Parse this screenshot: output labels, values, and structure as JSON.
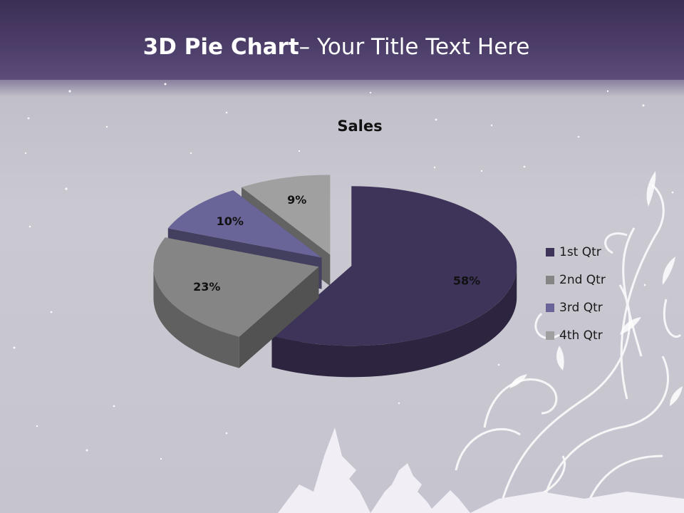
{
  "slide": {
    "title_bold": "3D Pie Chart",
    "title_rest": "– Your Title Text Here"
  },
  "chart_data": {
    "type": "pie",
    "style": "3d-exploded",
    "title": "Sales",
    "categories": [
      "1st Qtr",
      "2nd Qtr",
      "3rd Qtr",
      "4th Qtr"
    ],
    "values": [
      58,
      23,
      10,
      9
    ],
    "data_labels": [
      "58%",
      "23%",
      "10%",
      "9%"
    ],
    "colors": [
      "#3e3358",
      "#858585",
      "#6a6599",
      "#a0a0a0"
    ],
    "legend_position": "right"
  }
}
